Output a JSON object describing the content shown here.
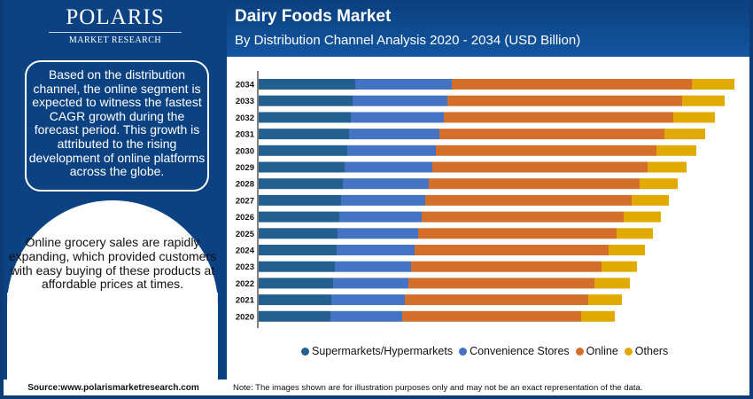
{
  "brand": {
    "name": "POLARIS",
    "tagline": "MARKET RESEARCH"
  },
  "header": {
    "title": "Dairy Foods Market",
    "subtitle": "By Distribution Channel Analysis 2020 - 2034 (USD Billion)"
  },
  "sidebar": {
    "insight_box": "Based on the distribution channel, the online segment is expected to witness the fastest CAGR growth during the forecast period. This growth is attributed to the rising development of online platforms across the globe.",
    "bubble_text": "Online grocery sales are rapidly expanding, which provided customers with easy buying of these products at affordable prices at times.",
    "source": "Source:www.polarismarketresearch.com"
  },
  "footer": {
    "note": "Note: The images shown are for illustration purposes only and may not be an exact representation of the data."
  },
  "colors": {
    "brand_navy": "#0d3d78",
    "supermarkets": "#235f8f",
    "convenience": "#4573c4",
    "online": "#d46f2b",
    "others": "#e0aa00"
  },
  "chart_data": {
    "type": "bar",
    "orientation": "horizontal",
    "stacked": true,
    "title": "Dairy Foods Market",
    "subtitle": "By Distribution Channel Analysis 2020 - 2034 (USD Billion)",
    "xlabel": "",
    "ylabel": "",
    "x_axis_visible": false,
    "grid": false,
    "legend_position": "bottom",
    "units": "relative (no value axis shown; estimated)",
    "categories": [
      "2034",
      "2033",
      "2032",
      "2031",
      "2030",
      "2029",
      "2028",
      "2027",
      "2026",
      "2025",
      "2024",
      "2023",
      "2022",
      "2021",
      "2020"
    ],
    "series": [
      {
        "name": "Supermarkets/Hypermarkets",
        "color": "#235f8f",
        "values": [
          10.9,
          10.6,
          10.4,
          10.2,
          10.0,
          9.7,
          9.5,
          9.3,
          9.1,
          8.9,
          8.8,
          8.6,
          8.4,
          8.2,
          8.1
        ]
      },
      {
        "name": "Convenience Stores",
        "color": "#4573c4",
        "values": [
          10.9,
          10.7,
          10.5,
          10.2,
          10.0,
          9.9,
          9.7,
          9.5,
          9.3,
          9.1,
          8.8,
          8.6,
          8.5,
          8.3,
          8.1
        ]
      },
      {
        "name": "Online",
        "color": "#d46f2b",
        "values": [
          27.1,
          26.5,
          25.9,
          25.4,
          24.9,
          24.3,
          23.8,
          23.3,
          22.8,
          22.4,
          21.9,
          21.5,
          21.0,
          20.7,
          20.2
        ]
      },
      {
        "name": "Others",
        "color": "#e0aa00",
        "values": [
          4.8,
          4.8,
          4.7,
          4.6,
          4.5,
          4.4,
          4.3,
          4.2,
          4.2,
          4.1,
          4.1,
          4.0,
          4.0,
          3.8,
          3.8
        ]
      }
    ],
    "xlim": [
      0,
      54
    ]
  }
}
